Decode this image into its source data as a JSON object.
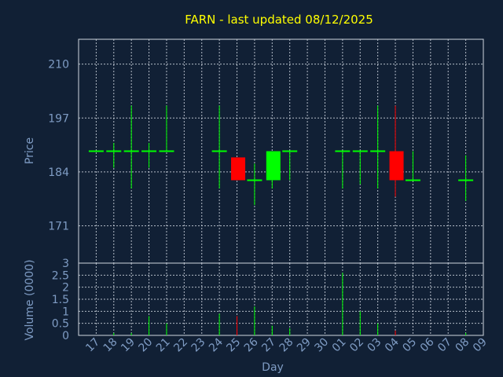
{
  "chart_data": {
    "title": "FARN - last updated 08/12/2025",
    "colors": {
      "background": "#112035",
      "up": "#00ff00",
      "down": "#ff0000",
      "title": "#ffff00",
      "axis_text": "#7f9cc4",
      "grid": "#cfd6e0"
    },
    "price_panel": {
      "type": "candlestick",
      "ylabel": "Price",
      "ylim": [
        162,
        216
      ],
      "yticks": [
        171,
        184,
        197,
        210
      ],
      "grid": true
    },
    "volume_panel": {
      "type": "bar",
      "ylabel": "Volume (0000)",
      "ylim": [
        0,
        3
      ],
      "yticks": [
        "0",
        "0.5",
        "1",
        "1.5",
        "2",
        "2.5",
        "3"
      ],
      "grid": true
    },
    "xlabel": "Day",
    "x_ticks": [
      "17",
      "18",
      "19",
      "20",
      "21",
      "22",
      "23",
      "24",
      "25",
      "26",
      "27",
      "28",
      "29",
      "30",
      "01",
      "02",
      "03",
      "04",
      "05",
      "06",
      "07",
      "08",
      "09"
    ],
    "candles": [
      {
        "day": "17",
        "open": 189,
        "high": 189,
        "low": 189,
        "close": 189,
        "volume": 0
      },
      {
        "day": "18",
        "open": 189,
        "high": 191,
        "low": 185,
        "close": 189,
        "volume": 0.1
      },
      {
        "day": "19",
        "open": 189,
        "high": 200,
        "low": 180,
        "close": 189,
        "volume": 0.1
      },
      {
        "day": "20",
        "open": 189,
        "high": 191,
        "low": 185,
        "close": 189,
        "volume": 0.8
      },
      {
        "day": "21",
        "open": 189,
        "high": 200,
        "low": 189,
        "close": 189,
        "volume": 0.5
      },
      {
        "day": "24",
        "open": 189,
        "high": 200,
        "low": 180,
        "close": 189,
        "volume": 0.9
      },
      {
        "day": "25",
        "open": 187.5,
        "high": 187.5,
        "low": 182,
        "close": 182,
        "volume": 0.8
      },
      {
        "day": "26",
        "open": 182,
        "high": 186,
        "low": 176,
        "close": 182,
        "volume": 1.2
      },
      {
        "day": "27",
        "open": 182,
        "high": 189,
        "low": 180,
        "close": 189,
        "volume": 0.4
      },
      {
        "day": "28",
        "open": 189,
        "high": 189,
        "low": 182,
        "close": 189,
        "volume": 0.3
      },
      {
        "day": "01",
        "open": 189,
        "high": 189,
        "low": 180,
        "close": 189,
        "volume": 2.6
      },
      {
        "day": "02",
        "open": 189,
        "high": 189,
        "low": 181,
        "close": 189,
        "volume": 1.0
      },
      {
        "day": "03",
        "open": 189,
        "high": 200,
        "low": 180,
        "close": 189,
        "volume": 0.5
      },
      {
        "day": "04",
        "open": 189,
        "high": 200,
        "low": 178,
        "close": 182,
        "volume": 0.2
      },
      {
        "day": "05",
        "open": 182,
        "high": 189,
        "low": 182,
        "close": 182,
        "volume": 0
      },
      {
        "day": "08",
        "open": 182,
        "high": 188,
        "low": 177,
        "close": 182,
        "volume": 0.1
      }
    ]
  }
}
